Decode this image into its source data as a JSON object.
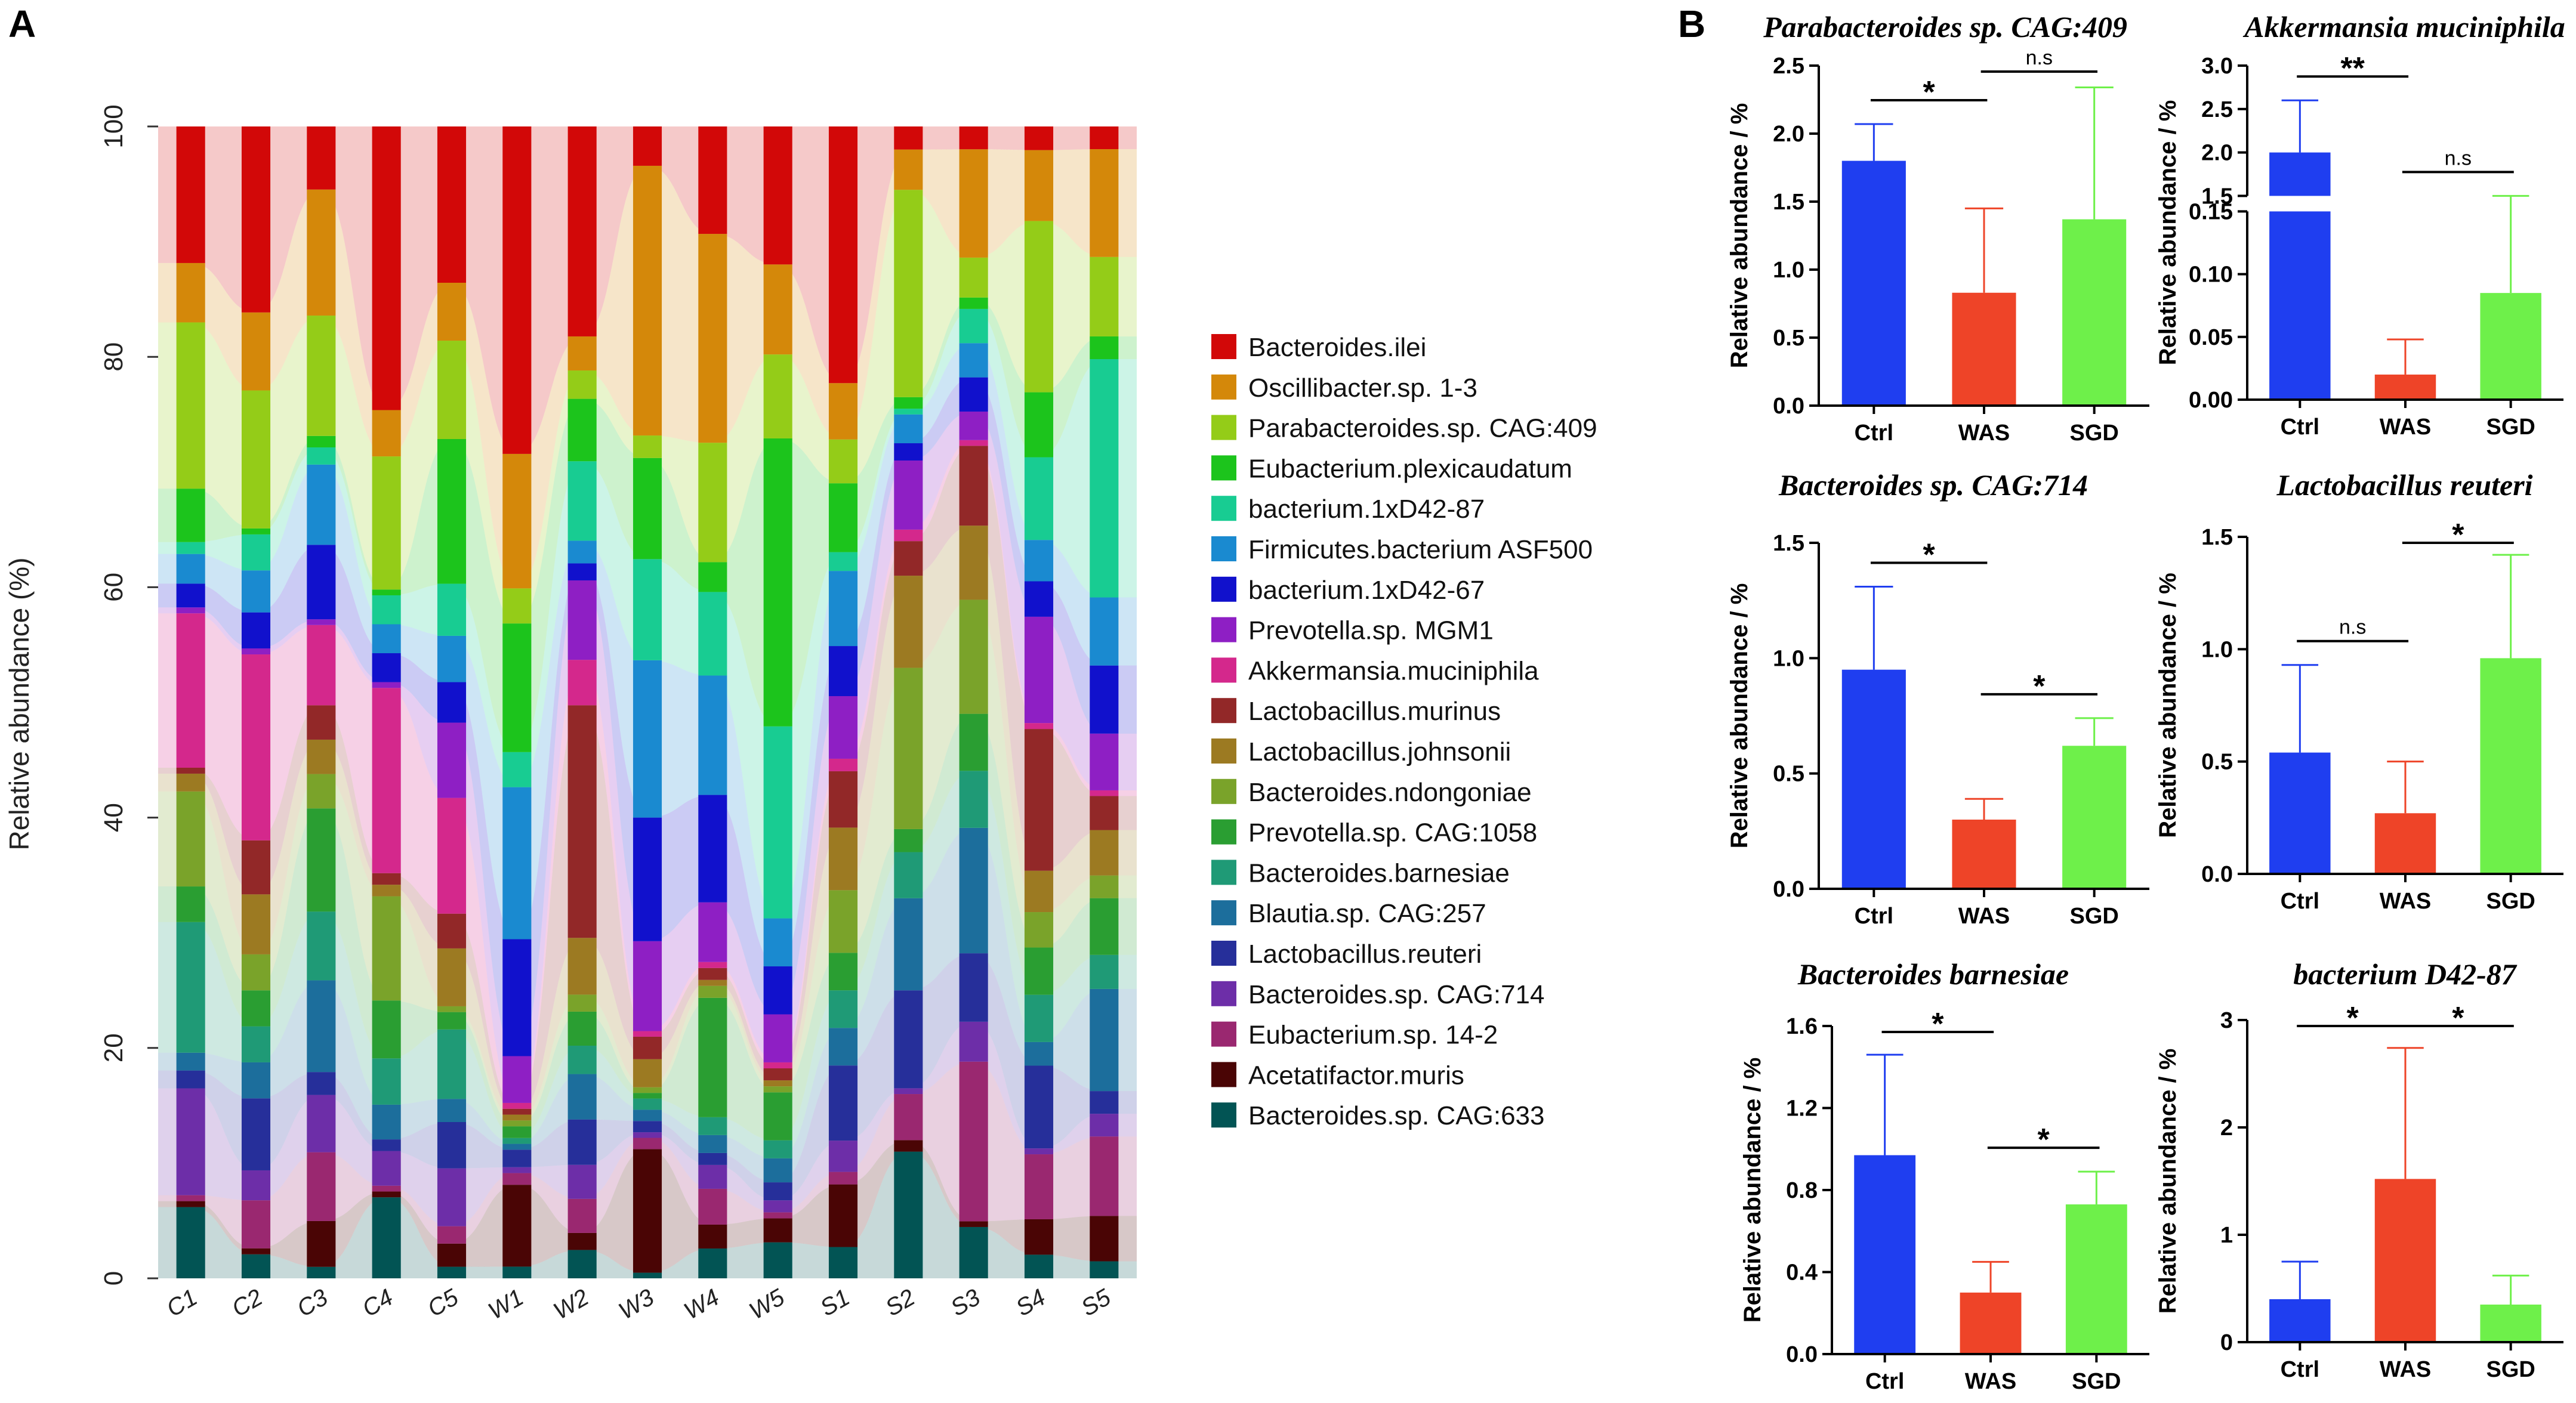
{
  "chart_data": [
    {
      "type": "stacked-bar",
      "panel": "A",
      "ylabel": "Relative abundance (%)",
      "ylim": [
        0,
        100
      ],
      "yticks": [
        0,
        20,
        40,
        60,
        80,
        100
      ],
      "categories": [
        "C1",
        "C2",
        "C3",
        "C4",
        "C5",
        "W1",
        "W2",
        "W3",
        "W4",
        "W5",
        "S1",
        "S2",
        "S3",
        "S4",
        "S5"
      ],
      "series": [
        {
          "name": "Bacteroides.sp. CAG:633",
          "color": "#025454",
          "values": [
            6,
            2,
            1,
            7,
            1,
            1,
            2.5,
            0.5,
            2.5,
            3,
            2.5,
            11,
            4.5,
            2,
            1.5
          ]
        },
        {
          "name": "Acetatifactor.muris",
          "color": "#4a0505",
          "values": [
            0.5,
            0.5,
            4,
            0.5,
            2,
            7,
            1.5,
            11,
            2,
            2,
            5,
            1,
            0.5,
            3,
            4
          ]
        },
        {
          "name": "Eubacterium.sp. 14-2",
          "color": "#9a2870",
          "values": [
            0.5,
            4,
            6,
            0.5,
            1.5,
            1,
            3,
            1,
            3,
            0.5,
            1,
            4,
            14,
            5.5,
            7
          ]
        },
        {
          "name": "Bacteroides.sp. CAG:714",
          "color": "#6d2ea8",
          "values": [
            9,
            2.5,
            5,
            3,
            5,
            0.5,
            3,
            0.5,
            2,
            1,
            2.5,
            0.5,
            3.5,
            0.5,
            2
          ]
        },
        {
          "name": "Lactobacillus.reuteri",
          "color": "#262f9a",
          "values": [
            1.5,
            6,
            2,
            1,
            4,
            1.5,
            4,
            1,
            1,
            1.5,
            6,
            8.5,
            6,
            7,
            2
          ]
        },
        {
          "name": "Blautia.sp. CAG:257",
          "color": "#1c6e9c",
          "values": [
            1.5,
            3,
            8,
            3,
            2,
            0.5,
            4,
            1,
            1.5,
            2,
            3,
            8,
            11,
            2,
            9
          ]
        },
        {
          "name": "Bacteroides.barnesiae",
          "color": "#1f9a76",
          "values": [
            11,
            3,
            6,
            4,
            6,
            0.5,
            2.5,
            1,
            1.5,
            1.5,
            3,
            4,
            5,
            4,
            3
          ]
        },
        {
          "name": "Prevotella.sp. CAG:1058",
          "color": "#2a9e32",
          "values": [
            3,
            3,
            9,
            5,
            1.5,
            1,
            3,
            0.5,
            10,
            4,
            3,
            2,
            5,
            4,
            5
          ]
        },
        {
          "name": "Bacteroides.ndongoniae",
          "color": "#7aa32a",
          "values": [
            8,
            3,
            3,
            9,
            0.5,
            0.5,
            1.5,
            0.5,
            1,
            0.5,
            5,
            14,
            10,
            3,
            2
          ]
        },
        {
          "name": "Lactobacillus.johnsonii",
          "color": "#9c7a22",
          "values": [
            1.5,
            5,
            3,
            1,
            5,
            0.5,
            5,
            2.5,
            0.5,
            0.5,
            5,
            8,
            6.5,
            3.5,
            4
          ]
        },
        {
          "name": "Lactobacillus.murinus",
          "color": "#922828",
          "values": [
            0.5,
            4.5,
            3,
            1,
            3,
            0.5,
            20.5,
            2,
            1,
            1,
            4.5,
            3,
            7,
            12,
            3
          ]
        },
        {
          "name": "Akkermansia.muciniphila",
          "color": "#d4288c",
          "values": [
            13,
            15.5,
            7,
            16,
            10,
            0.5,
            4,
            0.5,
            0.5,
            0.5,
            1,
            1,
            0.5,
            0.5,
            0.5
          ]
        },
        {
          "name": "Prevotella.sp. MGM1",
          "color": "#8e1fc4",
          "values": [
            0.5,
            0.5,
            0.5,
            0.5,
            6.5,
            4,
            7,
            8,
            5,
            4,
            5,
            6,
            2.5,
            9,
            5
          ]
        },
        {
          "name": "bacterium.1xD42-67",
          "color": "#1111cc",
          "values": [
            2,
            3,
            6.5,
            2.5,
            3.5,
            10,
            1.5,
            11,
            9,
            4,
            4,
            1.5,
            3,
            3,
            6
          ]
        },
        {
          "name": "Firmicutes.bacterium ASF500",
          "color": "#1a8ad0",
          "values": [
            2.5,
            3.5,
            7,
            2.5,
            4,
            13,
            2,
            14,
            10,
            4,
            6,
            2.5,
            3,
            3.5,
            6
          ]
        },
        {
          "name": "bacterium.1xD42-87",
          "color": "#18cc92",
          "values": [
            1,
            3,
            1.5,
            2.5,
            4.5,
            3,
            7,
            9,
            7,
            16,
            1.5,
            0.5,
            3,
            7,
            21
          ]
        },
        {
          "name": "Eubacterium.plexicaudatum",
          "color": "#1cc41c",
          "values": [
            4.5,
            0.5,
            1,
            0.5,
            12.5,
            11,
            5.5,
            9,
            2.5,
            24,
            5.5,
            1,
            1,
            5.5,
            2
          ]
        },
        {
          "name": "Parabacteroides.sp. CAG:409",
          "color": "#94cc18",
          "values": [
            14,
            11.5,
            10.5,
            11.5,
            8.5,
            3,
            2.5,
            2,
            10,
            7,
            3.5,
            18,
            3.5,
            14.5,
            7
          ]
        },
        {
          "name": "Oscillibacter.sp. 1-3",
          "color": "#d4880a",
          "values": [
            5,
            6.5,
            11,
            4,
            5,
            11.5,
            3,
            24,
            17.5,
            7.5,
            4.5,
            3.5,
            9.5,
            6,
            9.5
          ]
        },
        {
          "name": "Bacteroides.ilei",
          "color": "#d20808",
          "values": [
            11.5,
            15.5,
            5.5,
            24.5,
            13.5,
            28,
            18.5,
            3.5,
            9,
            11.5,
            20.5,
            2,
            2,
            2,
            2
          ]
        }
      ]
    },
    {
      "type": "bar",
      "panel": "B",
      "title": "Parabacteroides sp. CAG:409",
      "categories": [
        "Ctrl",
        "WAS",
        "SGD"
      ],
      "values": [
        1.8,
        0.83,
        1.37
      ],
      "errors": [
        0.27,
        0.62,
        0.97
      ],
      "ylabel": "Relative abundance / %",
      "ylim": [
        0,
        2.5
      ],
      "yticks": [
        "0.0",
        "0.5",
        "1.0",
        "1.5",
        "2.0",
        "2.5"
      ],
      "significance": [
        {
          "pair": [
            0,
            1
          ],
          "label": "*"
        },
        {
          "pair": [
            1,
            2
          ],
          "label": "n.s"
        }
      ]
    },
    {
      "type": "bar",
      "panel": "B",
      "title": "Akkermansia muciniphila",
      "broken_axis": true,
      "categories": [
        "Ctrl",
        "WAS",
        "SGD"
      ],
      "values": [
        2.0,
        0.02,
        0.085
      ],
      "errors": [
        0.6,
        0.028,
        0.068
      ],
      "ylabel": "Relative abundance / %",
      "ylim_lower": [
        0,
        0.15
      ],
      "ylim_upper": [
        1.5,
        3.0
      ],
      "yticks_lower": [
        "0.00",
        "0.05",
        "0.10",
        "0.15"
      ],
      "yticks_upper": [
        "1.5",
        "2.0",
        "2.5",
        "3.0"
      ],
      "significance": [
        {
          "pair": [
            0,
            1
          ],
          "label": "**"
        },
        {
          "pair": [
            1,
            2
          ],
          "label": "n.s"
        }
      ]
    },
    {
      "type": "bar",
      "panel": "B",
      "title": "Bacteroides sp. CAG:714",
      "categories": [
        "Ctrl",
        "WAS",
        "SGD"
      ],
      "values": [
        0.95,
        0.3,
        0.62
      ],
      "errors": [
        0.36,
        0.09,
        0.12
      ],
      "ylabel": "Relative abundance / %",
      "ylim": [
        0,
        1.5
      ],
      "yticks": [
        "0.0",
        "0.5",
        "1.0",
        "1.5"
      ],
      "significance": [
        {
          "pair": [
            0,
            1
          ],
          "label": "*"
        },
        {
          "pair": [
            1,
            2
          ],
          "label": "*"
        }
      ]
    },
    {
      "type": "bar",
      "panel": "B",
      "title": "Lactobacillus reuteri",
      "categories": [
        "Ctrl",
        "WAS",
        "SGD"
      ],
      "values": [
        0.54,
        0.27,
        0.96
      ],
      "errors": [
        0.39,
        0.23,
        0.46
      ],
      "ylabel": "Relative abundance / %",
      "ylim": [
        0,
        1.5
      ],
      "yticks": [
        "0.0",
        "0.5",
        "1.0",
        "1.5"
      ],
      "significance": [
        {
          "pair": [
            0,
            1
          ],
          "label": "n.s"
        },
        {
          "pair": [
            1,
            2
          ],
          "label": "*"
        }
      ]
    },
    {
      "type": "bar",
      "panel": "B",
      "title": "Bacteroides barnesiae",
      "categories": [
        "Ctrl",
        "WAS",
        "SGD"
      ],
      "values": [
        0.97,
        0.3,
        0.73
      ],
      "errors": [
        0.49,
        0.15,
        0.16
      ],
      "ylabel": "Relative abundance / %",
      "ylim": [
        0,
        1.6
      ],
      "yticks": [
        "0.0",
        "0.4",
        "0.8",
        "1.2",
        "1.6"
      ],
      "significance": [
        {
          "pair": [
            0,
            1
          ],
          "label": "*"
        },
        {
          "pair": [
            1,
            2
          ],
          "label": "*"
        }
      ]
    },
    {
      "type": "bar",
      "panel": "B",
      "title": "bacterium D42-87",
      "categories": [
        "Ctrl",
        "WAS",
        "SGD"
      ],
      "values": [
        0.4,
        1.52,
        0.35
      ],
      "errors": [
        0.35,
        1.22,
        0.27
      ],
      "ylabel": "Relative abundance / %",
      "ylim": [
        0,
        3
      ],
      "yticks": [
        "0",
        "1",
        "2",
        "3"
      ],
      "significance": [
        {
          "pair": [
            0,
            1
          ],
          "label": "*"
        },
        {
          "pair": [
            1,
            2
          ],
          "label": "*"
        }
      ]
    }
  ],
  "panel_labels": [
    "A",
    "B"
  ],
  "bar_colors": {
    "Ctrl": "#1f3ef0",
    "WAS": "#ee4428",
    "SGD": "#6ef04a"
  }
}
